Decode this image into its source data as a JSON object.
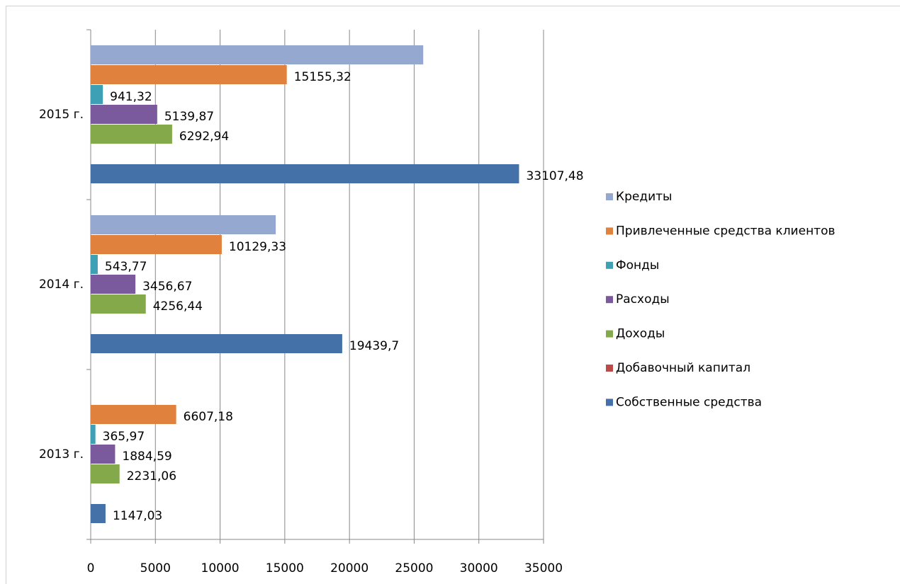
{
  "chart_data": {
    "type": "bar",
    "orientation": "horizontal",
    "categories": [
      "2013 г.",
      "2014 г.",
      "2015 г."
    ],
    "series": [
      {
        "name": "Кредиты",
        "color": "#95a9d0",
        "values": [
          null,
          14300,
          25700
        ]
      },
      {
        "name": "Привлеченные средства клиентов",
        "color": "#e0823d",
        "values": [
          6607.18,
          10129.33,
          15155.32
        ],
        "value_labels": [
          "6607,18",
          "10129,33",
          "15155,32"
        ]
      },
      {
        "name": "Фонды",
        "color": "#3ea0b5",
        "values": [
          365.97,
          543.77,
          941.32
        ],
        "value_labels": [
          "365,97",
          "543,77",
          "941,32"
        ]
      },
      {
        "name": "Расходы",
        "color": "#7a5a9c",
        "values": [
          1884.59,
          3456.67,
          5139.87
        ],
        "value_labels": [
          "1884,59",
          "3456,67",
          "5139,87"
        ]
      },
      {
        "name": "Доходы",
        "color": "#84a94b",
        "values": [
          2231.06,
          4256.44,
          6292.94
        ],
        "value_labels": [
          "2231,06",
          "4256,44",
          "6292,94"
        ]
      },
      {
        "name": "Добавочный капитал",
        "color": "#bc4a47",
        "values": [
          null,
          null,
          null
        ]
      },
      {
        "name": "Собственные средства",
        "color": "#4471a8",
        "values": [
          1147.03,
          19439.7,
          33107.48
        ],
        "value_labels": [
          "1147,03",
          "19439,7",
          "33107,48"
        ]
      }
    ],
    "xlim": [
      0,
      35000
    ],
    "xticks": [
      0,
      5000,
      10000,
      15000,
      20000,
      25000,
      30000,
      35000
    ],
    "grid": true,
    "legend": "right"
  }
}
